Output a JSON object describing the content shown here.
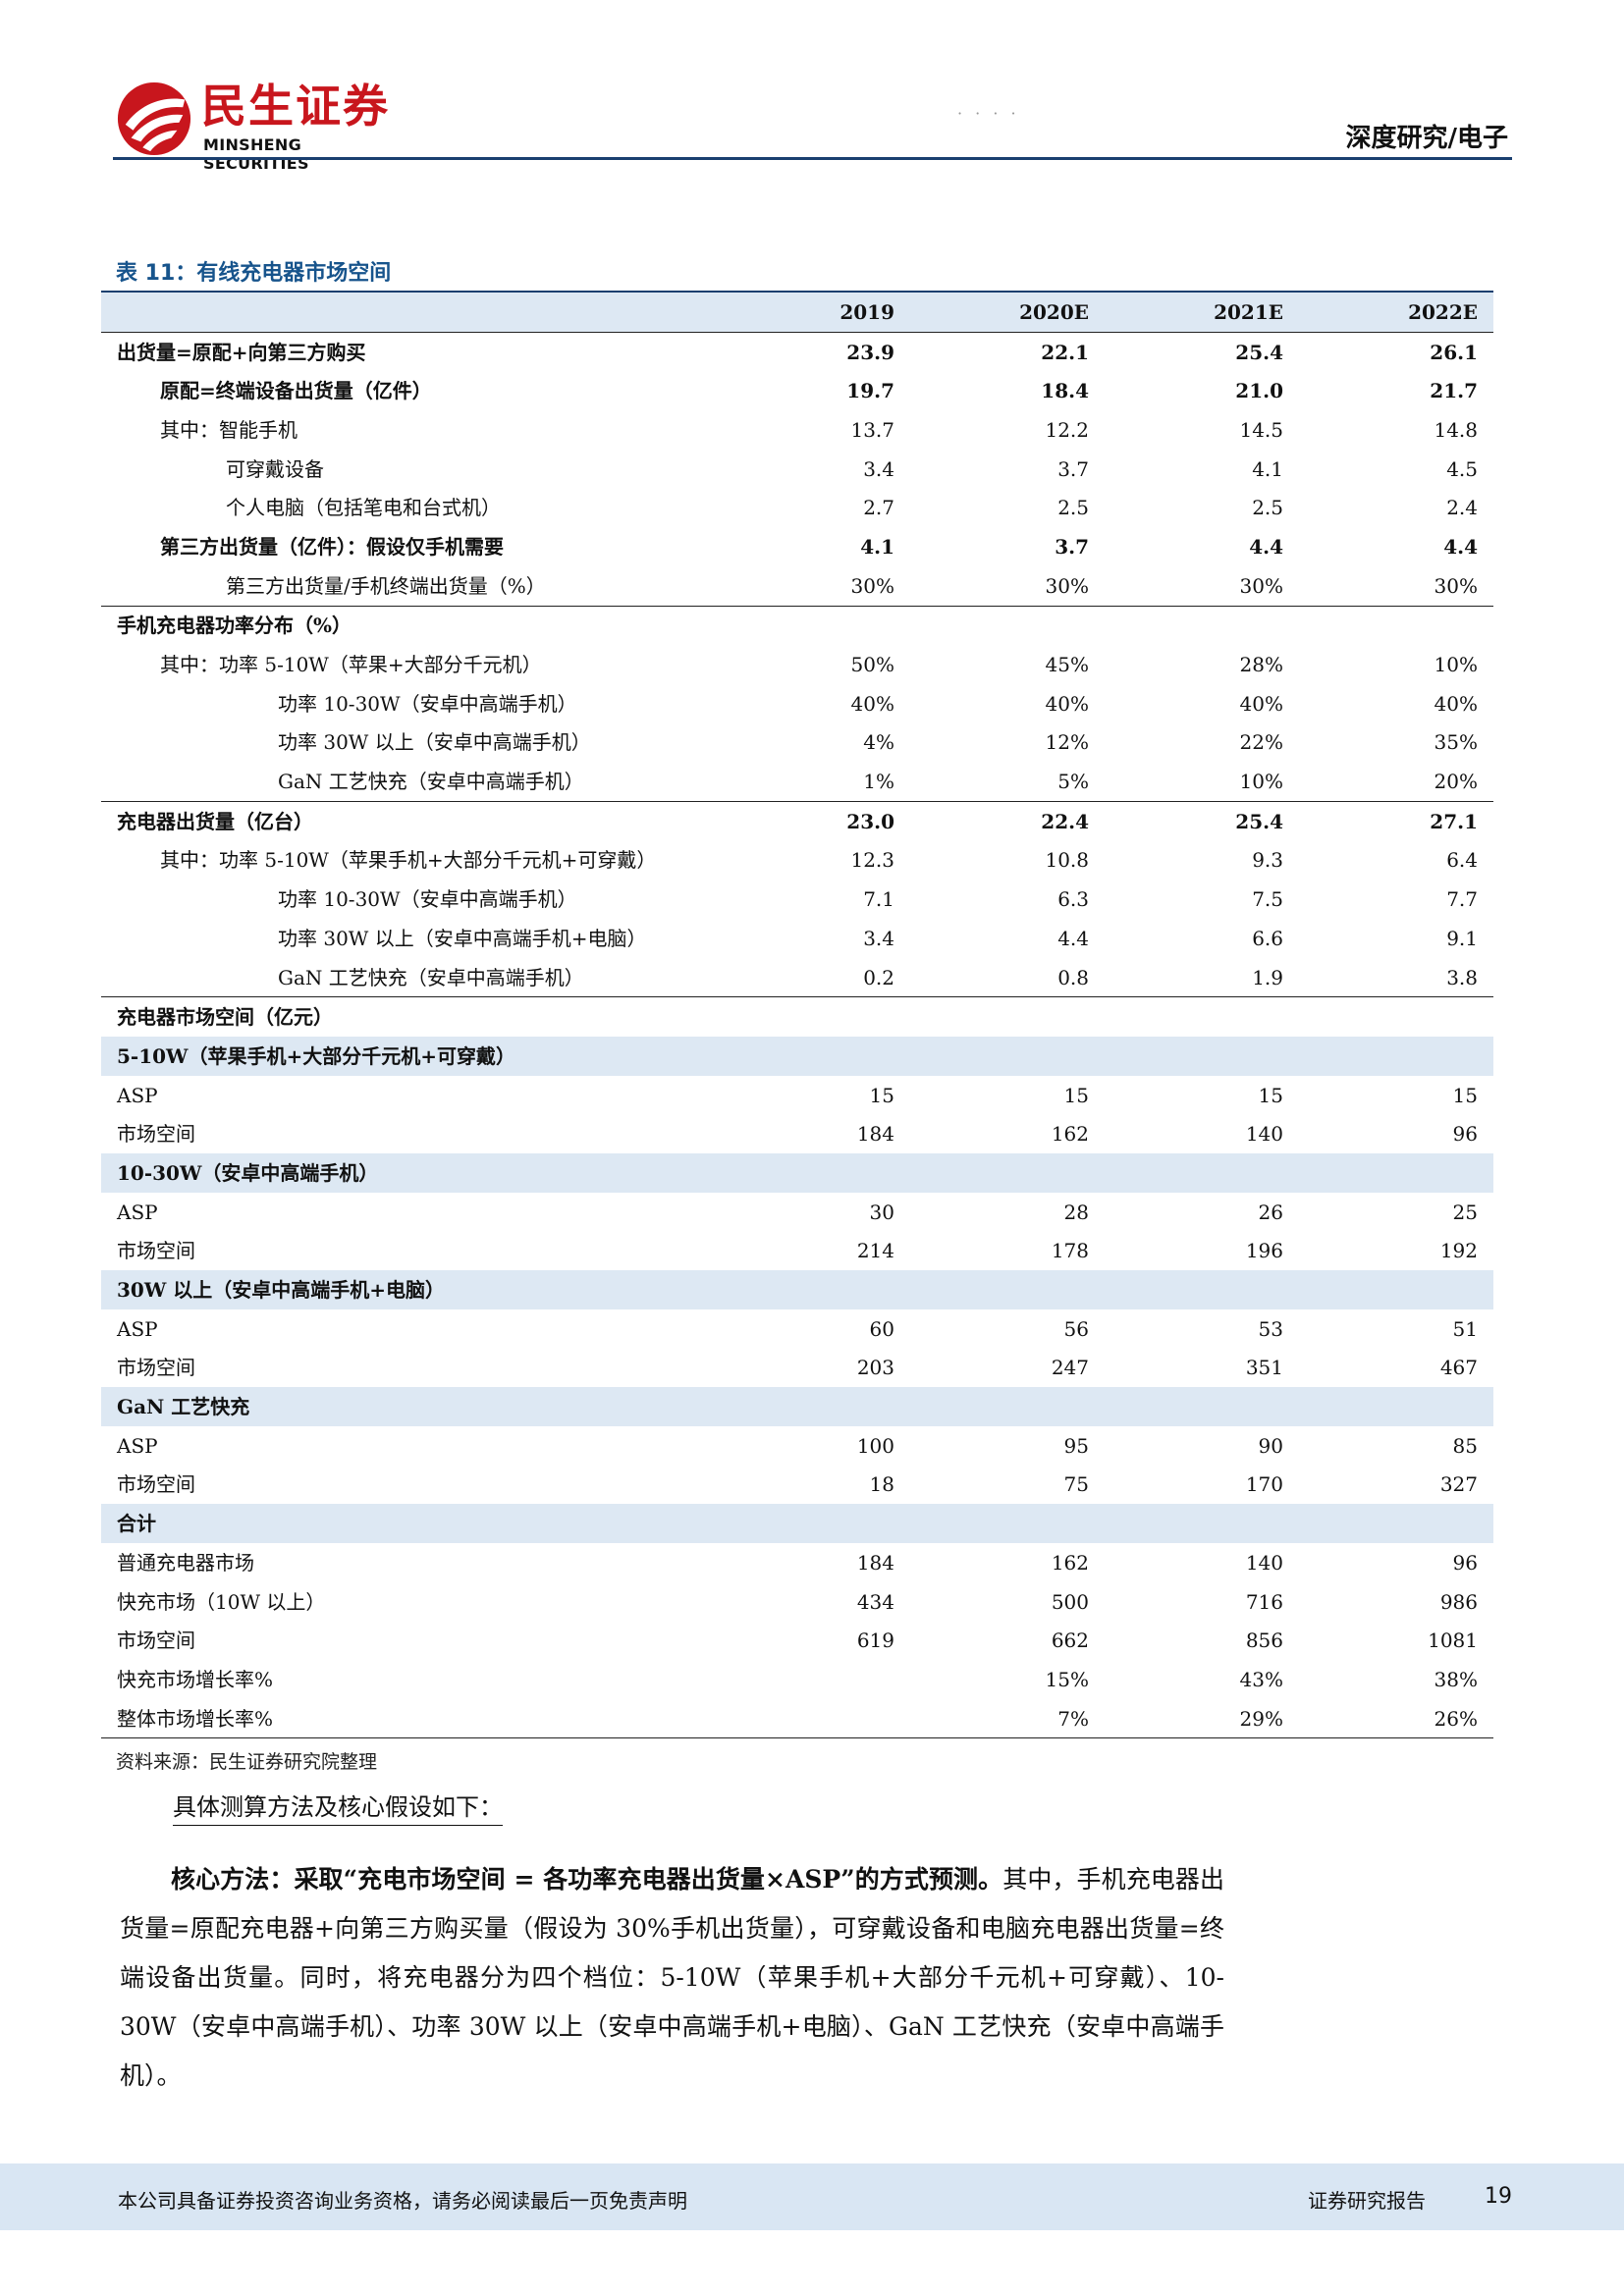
{
  "header": {
    "logo_cn": "民生证券",
    "logo_en": "MINSHENG SECURITIES",
    "mark": "· · · ·",
    "section": "深度研究/电子",
    "brand_color": "#c8161d",
    "line_color": "#1a3f6f"
  },
  "table": {
    "title": "表 11：有线充电器市场空间",
    "columns": [
      "",
      "2019",
      "2020E",
      "2021E",
      "2022E"
    ],
    "rows": [
      {
        "label": "出货量=原配+向第三方购买",
        "indent": 0,
        "bold": true,
        "values": [
          "23.9",
          "22.1",
          "25.4",
          "26.1"
        ]
      },
      {
        "label": "原配=终端设备出货量（亿件）",
        "indent": 1,
        "bold": true,
        "values": [
          "19.7",
          "18.4",
          "21.0",
          "21.7"
        ]
      },
      {
        "label": "其中：智能手机",
        "indent": 1,
        "values": [
          "13.7",
          "12.2",
          "14.5",
          "14.8"
        ]
      },
      {
        "label": "可穿戴设备",
        "indent": 2,
        "values": [
          "3.4",
          "3.7",
          "4.1",
          "4.5"
        ]
      },
      {
        "label": "个人电脑（包括笔电和台式机）",
        "indent": 2,
        "values": [
          "2.7",
          "2.5",
          "2.5",
          "2.4"
        ]
      },
      {
        "label": "第三方出货量（亿件）：假设仅手机需要",
        "indent": 1,
        "bold": true,
        "values": [
          "4.1",
          "3.7",
          "4.4",
          "4.4"
        ]
      },
      {
        "label": "第三方出货量/手机终端出货量（%）",
        "indent": 2,
        "sep": true,
        "values": [
          "30%",
          "30%",
          "30%",
          "30%"
        ]
      },
      {
        "label": "手机充电器功率分布（%）",
        "indent": 0,
        "bold": true,
        "values": [
          "",
          "",
          "",
          ""
        ]
      },
      {
        "label": "其中：功率 5-10W（苹果+大部分千元机）",
        "indent": 1,
        "values": [
          "50%",
          "45%",
          "28%",
          "10%"
        ]
      },
      {
        "label": "功率 10-30W（安卓中高端手机）",
        "indent": 3,
        "values": [
          "40%",
          "40%",
          "40%",
          "40%"
        ]
      },
      {
        "label": "功率 30W 以上（安卓中高端手机）",
        "indent": 3,
        "values": [
          "4%",
          "12%",
          "22%",
          "35%"
        ]
      },
      {
        "label": "GaN 工艺快充（安卓中高端手机）",
        "indent": 3,
        "sep": true,
        "values": [
          "1%",
          "5%",
          "10%",
          "20%"
        ]
      },
      {
        "label": "充电器出货量（亿台）",
        "indent": 0,
        "bold": true,
        "values": [
          "23.0",
          "22.4",
          "25.4",
          "27.1"
        ]
      },
      {
        "label": "其中：功率 5-10W（苹果手机+大部分千元机+可穿戴）",
        "indent": 1,
        "values": [
          "12.3",
          "10.8",
          "9.3",
          "6.4"
        ]
      },
      {
        "label": "功率 10-30W（安卓中高端手机）",
        "indent": 3,
        "values": [
          "7.1",
          "6.3",
          "7.5",
          "7.7"
        ]
      },
      {
        "label": "功率 30W 以上（安卓中高端手机+电脑）",
        "indent": 3,
        "values": [
          "3.4",
          "4.4",
          "6.6",
          "9.1"
        ]
      },
      {
        "label": "GaN 工艺快充（安卓中高端手机）",
        "indent": 3,
        "sep": true,
        "values": [
          "0.2",
          "0.8",
          "1.9",
          "3.8"
        ]
      },
      {
        "label": "充电器市场空间（亿元）",
        "indent": 0,
        "bold": true,
        "values": [
          "",
          "",
          "",
          ""
        ]
      },
      {
        "label": "5-10W（苹果手机+大部分千元机+可穿戴）",
        "indent": 0,
        "bold": true,
        "band": true,
        "values": [
          "",
          "",
          "",
          ""
        ]
      },
      {
        "label": "ASP",
        "indent": 0,
        "values": [
          "15",
          "15",
          "15",
          "15"
        ]
      },
      {
        "label": "市场空间",
        "indent": 0,
        "values": [
          "184",
          "162",
          "140",
          "96"
        ]
      },
      {
        "label": "10-30W（安卓中高端手机）",
        "indent": 0,
        "bold": true,
        "band": true,
        "values": [
          "",
          "",
          "",
          ""
        ]
      },
      {
        "label": "ASP",
        "indent": 0,
        "values": [
          "30",
          "28",
          "26",
          "25"
        ]
      },
      {
        "label": "市场空间",
        "indent": 0,
        "values": [
          "214",
          "178",
          "196",
          "192"
        ]
      },
      {
        "label": "30W 以上（安卓中高端手机+电脑）",
        "indent": 0,
        "bold": true,
        "band": true,
        "values": [
          "",
          "",
          "",
          ""
        ]
      },
      {
        "label": "ASP",
        "indent": 0,
        "values": [
          "60",
          "56",
          "53",
          "51"
        ]
      },
      {
        "label": "市场空间",
        "indent": 0,
        "values": [
          "203",
          "247",
          "351",
          "467"
        ]
      },
      {
        "label": "GaN 工艺快充",
        "indent": 0,
        "bold": true,
        "band": true,
        "values": [
          "",
          "",
          "",
          ""
        ]
      },
      {
        "label": "ASP",
        "indent": 0,
        "values": [
          "100",
          "95",
          "90",
          "85"
        ]
      },
      {
        "label": "市场空间",
        "indent": 0,
        "values": [
          "18",
          "75",
          "170",
          "327"
        ]
      },
      {
        "label": "合计",
        "indent": 0,
        "bold": true,
        "band": true,
        "values": [
          "",
          "",
          "",
          ""
        ]
      },
      {
        "label": "普通充电器市场",
        "indent": 0,
        "values": [
          "184",
          "162",
          "140",
          "96"
        ]
      },
      {
        "label": "快充市场（10W 以上）",
        "indent": 0,
        "values": [
          "434",
          "500",
          "716",
          "986"
        ]
      },
      {
        "label": "市场空间",
        "indent": 0,
        "values": [
          "619",
          "662",
          "856",
          "1081"
        ]
      },
      {
        "label": "快充市场增长率%",
        "indent": 0,
        "values": [
          "",
          "15%",
          "43%",
          "38%"
        ]
      },
      {
        "label": "整体市场增长率%",
        "indent": 0,
        "last": true,
        "values": [
          "",
          "7%",
          "29%",
          "26%"
        ]
      }
    ],
    "source": "资料来源：民生证券研究院整理",
    "band_color": "#dde8f3"
  },
  "body": {
    "subhead": "具体测算方法及核心假设如下：",
    "para_bold": "核心方法：采取“充电市场空间 = 各功率充电器出货量×ASP”的方式预测。",
    "para_rest": "其中，手机充电器出货量=原配充电器+向第三方购买量（假设为 30%手机出货量），可穿戴设备和电脑充电器出货量=终端设备出货量。同时，将充电器分为四个档位：5-10W（苹果手机+大部分千元机+可穿戴）、10-30W（安卓中高端手机）、功率 30W 以上（安卓中高端手机+电脑）、GaN 工艺快充（安卓中高端手机）。"
  },
  "footer": {
    "disclaimer": "本公司具备证券投资咨询业务资格，请务必阅读最后一页免责声明",
    "report_type": "证券研究报告",
    "page_number": "19",
    "background": "#d9e6f3"
  }
}
